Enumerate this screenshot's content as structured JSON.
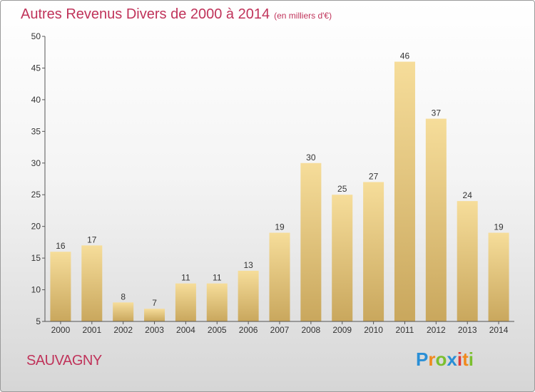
{
  "chart_data": {
    "type": "bar",
    "title": "Autres Revenus Divers de 2000 à 2014",
    "subtitle": "(en milliers d'€)",
    "categories": [
      "2000",
      "2001",
      "2002",
      "2003",
      "2004",
      "2005",
      "2006",
      "2007",
      "2008",
      "2009",
      "2010",
      "2011",
      "2012",
      "2013",
      "2014"
    ],
    "values": [
      16,
      17,
      8,
      7,
      11,
      11,
      13,
      19,
      30,
      25,
      27,
      46,
      37,
      24,
      19
    ],
    "ylim": [
      5,
      50
    ],
    "yticks": [
      5,
      10,
      15,
      20,
      25,
      30,
      35,
      40,
      45,
      50
    ],
    "grid": false,
    "colors": {
      "bar_light": "#f6dd9a",
      "bar_dark": "#c9a75d",
      "title": "#c0335a"
    }
  },
  "location": "SAUVAGNY",
  "logo": {
    "text": "Proxiti",
    "letters": [
      "P",
      "r",
      "o",
      "x",
      "i",
      "t",
      "i"
    ],
    "colors": [
      "#2a8fd6",
      "#f0891d",
      "#7bbf2e",
      "#2a8fd6",
      "#e23a3a",
      "#f0891d",
      "#7bbf2e"
    ]
  }
}
